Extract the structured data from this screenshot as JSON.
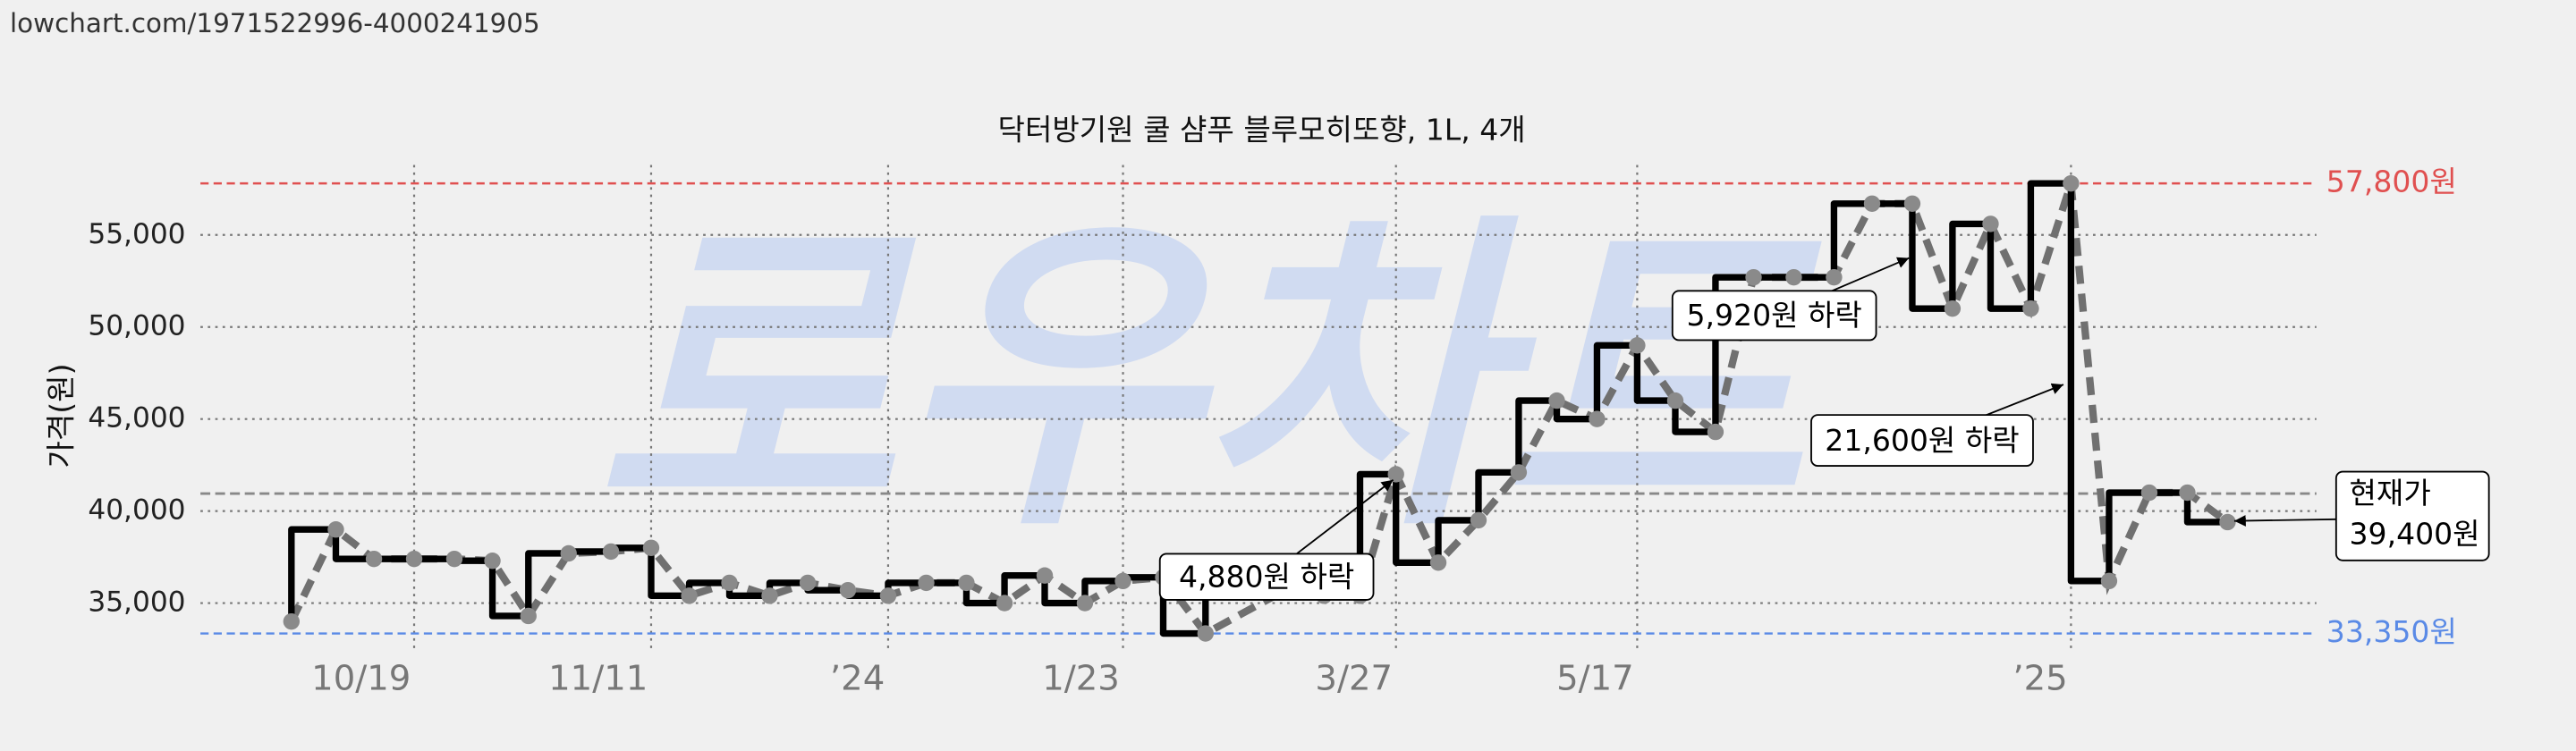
{
  "chart_data": {
    "type": "line",
    "url": "lowchart.com/1971522996-4000241905",
    "title": "닥터방기원 쿨 샴푸 블루모히또향, 1L, 4개",
    "watermark": "로우차트",
    "y_label": "가격(원)",
    "color": "#000000",
    "dash_color": "#707070",
    "marker_color": "#8a8a8a",
    "x": [
      4.3,
      6.4,
      8.2,
      10.1,
      12.0,
      13.8,
      15.5,
      17.4,
      19.4,
      21.3,
      23.1,
      25.0,
      26.9,
      28.7,
      30.6,
      32.5,
      34.3,
      36.2,
      38.0,
      39.9,
      41.8,
      43.6,
      45.5,
      47.5,
      51.1,
      53.1,
      54.8,
      56.5,
      58.5,
      60.4,
      62.3,
      64.1,
      66.0,
      67.9,
      69.7,
      71.6,
      73.4,
      75.3,
      77.2,
      79.0,
      80.9,
      82.8,
      84.6,
      86.5,
      88.4,
      90.2,
      92.1,
      93.9,
      95.8
    ],
    "values": [
      34000,
      39000,
      37400,
      37400,
      37400,
      37300,
      34300,
      37700,
      37800,
      38000,
      35400,
      36100,
      35400,
      36100,
      35700,
      35400,
      36100,
      36100,
      35000,
      36500,
      35000,
      36200,
      36400,
      33350,
      35600,
      35400,
      35400,
      42000,
      37200,
      39500,
      42100,
      46000,
      45000,
      49000,
      46000,
      44300,
      52700,
      52700,
      52700,
      56700,
      56700,
      51000,
      55600,
      51000,
      57800,
      36200,
      41000,
      41000,
      39400
    ],
    "xlim": [
      0,
      100
    ],
    "xticks": [
      {
        "value": 10.1,
        "label": "10/19"
      },
      {
        "value": 21.3,
        "label": "11/11"
      },
      {
        "value": 32.5,
        "label": "’24"
      },
      {
        "value": 43.6,
        "label": "1/23"
      },
      {
        "value": 56.5,
        "label": "3/27"
      },
      {
        "value": 67.9,
        "label": "5/17"
      },
      {
        "value": 88.4,
        "label": "’25"
      }
    ],
    "ylim": [
      32500,
      58800
    ],
    "yticks": [
      {
        "value": 35000,
        "label": "35,000"
      },
      {
        "value": 40000,
        "label": "40,000"
      },
      {
        "value": 45000,
        "label": "45,000"
      },
      {
        "value": 50000,
        "label": "50,000"
      },
      {
        "value": 55000,
        "label": "55,000"
      }
    ],
    "grid": true,
    "max_value": 57800,
    "max_label": "57,800원",
    "max_color": "#e05050",
    "min_value": 33350,
    "min_label": "33,350원",
    "min_color": "#5a8ae6",
    "average": 40950,
    "annotations": [
      "4,880원 하락",
      "5,920원 하락",
      "21,600원 하락"
    ],
    "current_title": "현재가",
    "current_label": "39,400원"
  }
}
